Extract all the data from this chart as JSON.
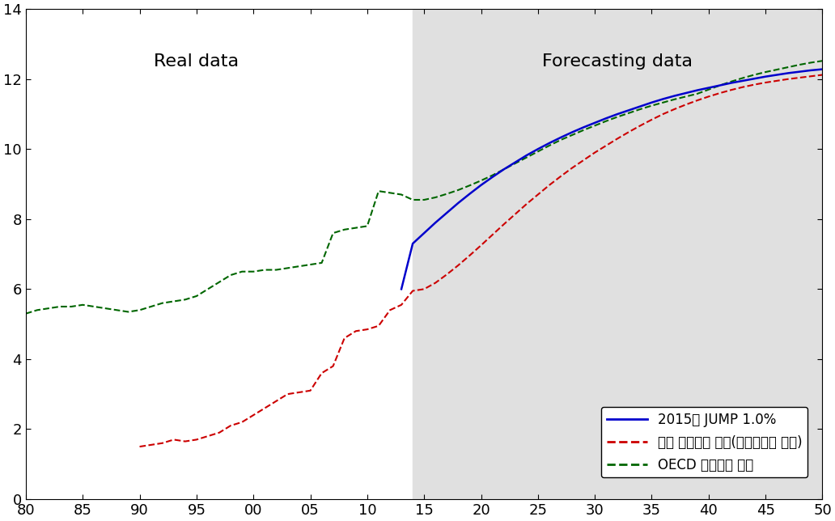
{
  "ylim": [
    0,
    14
  ],
  "yticks": [
    0,
    2,
    4,
    6,
    8,
    10,
    12,
    14
  ],
  "xtick_labels": [
    "80",
    "85",
    "90",
    "95",
    "00",
    "05",
    "10",
    "15",
    "20",
    "25",
    "30",
    "35",
    "40",
    "45",
    "50"
  ],
  "xtick_positions": [
    80,
    85,
    90,
    95,
    100,
    105,
    110,
    115,
    120,
    125,
    130,
    135,
    140,
    145,
    150
  ],
  "xlim": [
    80,
    150
  ],
  "forecast_start_x": 114,
  "real_data_label": "Real data",
  "real_data_x": 95,
  "real_data_y": 12.5,
  "forecast_label": "Forecasting data",
  "forecast_x": 132,
  "forecast_y": 12.5,
  "forecast_bg_color": "#e0e0e0",
  "legend_labels": [
    "2015년 JUMP 1.0%",
    "한국 사회지출 현물(현재추세로 예측)",
    "OECD 사회지출 현물"
  ],
  "legend_colors": [
    "#0000cc",
    "#cc0000",
    "#006600"
  ],
  "legend_styles": [
    "solid",
    "dashed",
    "dashed"
  ],
  "korea_jump_x": [
    113,
    114,
    115,
    116,
    117,
    118,
    119,
    120,
    121,
    122,
    123,
    124,
    125,
    126,
    127,
    128,
    129,
    130,
    131,
    132,
    133,
    134,
    135,
    136,
    137,
    138,
    139,
    140,
    141,
    142,
    143,
    144,
    145,
    146,
    147,
    148,
    149,
    150
  ],
  "korea_jump_y": [
    6.0,
    7.3,
    7.6,
    7.9,
    8.18,
    8.46,
    8.72,
    8.97,
    9.2,
    9.42,
    9.62,
    9.82,
    10.0,
    10.17,
    10.33,
    10.48,
    10.62,
    10.75,
    10.88,
    11.0,
    11.11,
    11.22,
    11.33,
    11.43,
    11.52,
    11.6,
    11.68,
    11.75,
    11.82,
    11.89,
    11.95,
    12.01,
    12.07,
    12.12,
    12.17,
    12.21,
    12.25,
    12.28
  ],
  "korea_trend_x": [
    90,
    91,
    92,
    93,
    94,
    95,
    96,
    97,
    98,
    99,
    100,
    101,
    102,
    103,
    104,
    105,
    106,
    107,
    108,
    109,
    110,
    111,
    112,
    113,
    114,
    115,
    116,
    117,
    118,
    119,
    120,
    121,
    122,
    123,
    124,
    125,
    126,
    127,
    128,
    129,
    130,
    131,
    132,
    133,
    134,
    135,
    136,
    137,
    138,
    139,
    140,
    141,
    142,
    143,
    144,
    145,
    146,
    147,
    148,
    149,
    150
  ],
  "korea_trend_y": [
    1.5,
    1.55,
    1.6,
    1.7,
    1.65,
    1.7,
    1.8,
    1.9,
    2.1,
    2.2,
    2.4,
    2.6,
    2.8,
    3.0,
    3.05,
    3.1,
    3.6,
    3.8,
    4.6,
    4.8,
    4.85,
    4.95,
    5.4,
    5.55,
    5.95,
    6.0,
    6.18,
    6.42,
    6.68,
    6.96,
    7.25,
    7.55,
    7.85,
    8.14,
    8.43,
    8.7,
    8.97,
    9.22,
    9.46,
    9.68,
    9.9,
    10.1,
    10.3,
    10.49,
    10.67,
    10.84,
    11.0,
    11.14,
    11.27,
    11.39,
    11.5,
    11.6,
    11.69,
    11.77,
    11.84,
    11.9,
    11.95,
    12.0,
    12.04,
    12.08,
    12.12
  ],
  "oecd_x": [
    80,
    81,
    82,
    83,
    84,
    85,
    86,
    87,
    88,
    89,
    90,
    91,
    92,
    93,
    94,
    95,
    96,
    97,
    98,
    99,
    100,
    101,
    102,
    103,
    104,
    105,
    106,
    107,
    108,
    109,
    110,
    111,
    112,
    113,
    114,
    115,
    116,
    117,
    118,
    119,
    120,
    121,
    122,
    123,
    124,
    125,
    126,
    127,
    128,
    129,
    130,
    131,
    132,
    133,
    134,
    135,
    136,
    137,
    138,
    139,
    140,
    141,
    142,
    143,
    144,
    145,
    146,
    147,
    148,
    149,
    150
  ],
  "oecd_y": [
    5.3,
    5.4,
    5.45,
    5.5,
    5.5,
    5.55,
    5.5,
    5.45,
    5.4,
    5.35,
    5.4,
    5.5,
    5.6,
    5.65,
    5.7,
    5.8,
    6.0,
    6.2,
    6.4,
    6.5,
    6.5,
    6.55,
    6.55,
    6.6,
    6.65,
    6.7,
    6.75,
    7.6,
    7.7,
    7.75,
    7.8,
    8.8,
    8.75,
    8.7,
    8.55,
    8.55,
    8.62,
    8.72,
    8.83,
    8.96,
    9.1,
    9.25,
    9.42,
    9.59,
    9.76,
    9.93,
    10.1,
    10.26,
    10.4,
    10.54,
    10.67,
    10.8,
    10.92,
    11.03,
    11.14,
    11.24,
    11.33,
    11.42,
    11.5,
    11.58,
    11.7,
    11.82,
    11.93,
    12.03,
    12.12,
    12.2,
    12.27,
    12.34,
    12.41,
    12.47,
    12.52
  ]
}
